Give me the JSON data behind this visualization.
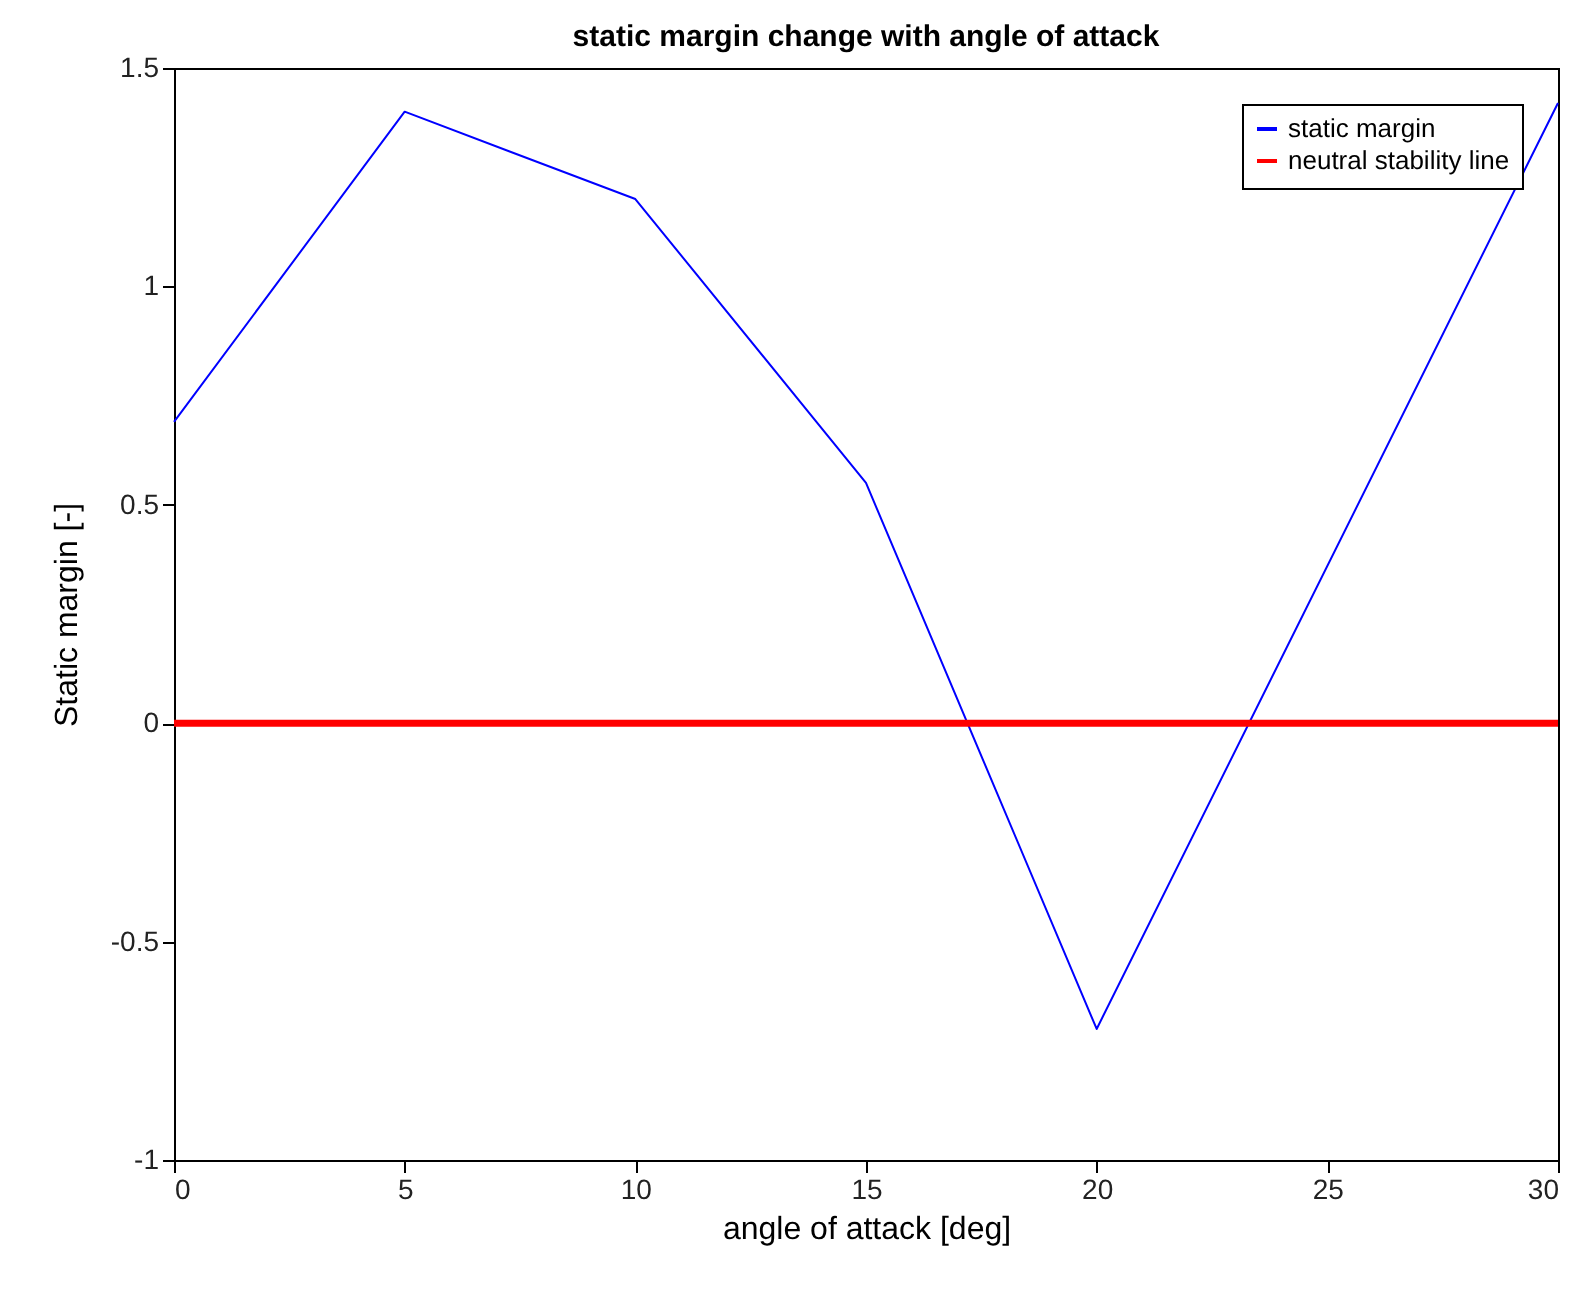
{
  "chart_data": {
    "type": "line",
    "title": "static margin change with angle of attack",
    "xlabel": "angle of attack [deg]",
    "ylabel": "Static margin [-]",
    "series": [
      {
        "name": "static margin",
        "color": "#0000ff",
        "x": [
          0,
          5,
          10,
          15,
          20,
          30
        ],
        "values": [
          0.69,
          1.4,
          1.2,
          0.55,
          -0.7,
          1.42
        ]
      },
      {
        "name": "neutral stability line",
        "color": "#ff0000",
        "x": [
          0,
          30
        ],
        "values": [
          0,
          0
        ]
      }
    ],
    "xlim": [
      0,
      30
    ],
    "xticks": [
      0,
      5,
      10,
      15,
      20,
      25,
      30
    ],
    "ylim": [
      -1,
      1.5
    ],
    "yticks": [
      -1,
      -0.5,
      0,
      0.5,
      1,
      1.5
    ],
    "grid": false,
    "legend": "top right"
  }
}
